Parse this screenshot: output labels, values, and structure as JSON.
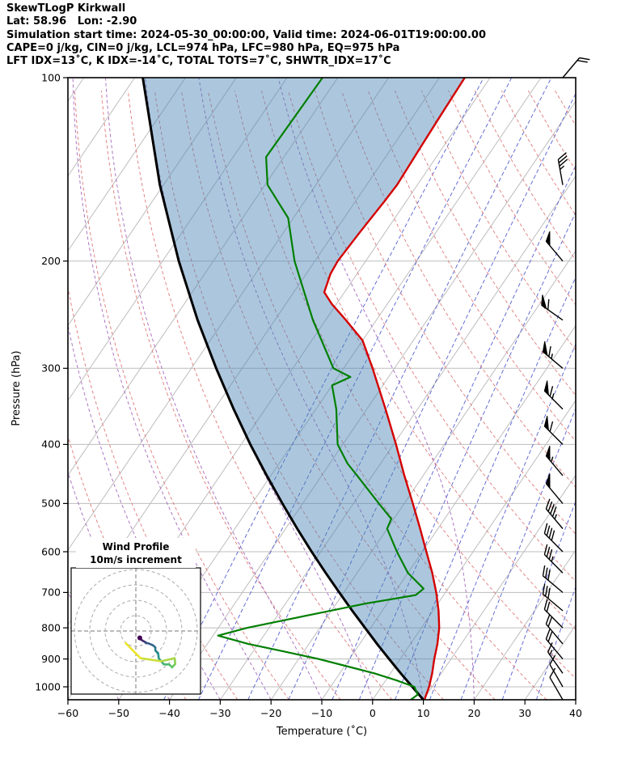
{
  "header": {
    "title": "SkewTLogP Kirkwall",
    "location": "Lat: 58.96   Lon: -2.90",
    "times": "Simulation start time: 2024-05-30_00:00:00, Valid time: 2024-06-01T19:00:00.00",
    "thermo_line": "CAPE=0 j/kg, CIN=0 j/kg, LCL=974 hPa, LFC=980 hPa, EQ=975 hPa",
    "index_line": "LFT IDX=13˚C, K IDX=-14˚C, TOTAL TOTS=7˚C, SHWTR_IDX=17˚C"
  },
  "axes": {
    "xlabel": "Temperature (˚C)",
    "ylabel": "Pressure (hPa)",
    "x_ticks": [
      -60,
      -50,
      -40,
      -30,
      -20,
      -10,
      0,
      10,
      20,
      30,
      40
    ],
    "y_ticks": [
      100,
      200,
      300,
      400,
      500,
      600,
      700,
      800,
      900,
      1000
    ]
  },
  "inset": {
    "title": "Wind Profile",
    "subtitle": "10m/s increment",
    "ring_increment_ms": 10
  },
  "chart_data": {
    "type": "line",
    "title": "SkewTLogP Kirkwall",
    "xlabel": "Temperature (˚C)",
    "ylabel": "Pressure (hPa)",
    "xlim": [
      -60,
      40
    ],
    "pressure_top_hpa": 100,
    "pressure_bottom_hpa": 1050,
    "grid": "log-pressure vertical, skewed isotherms",
    "temperature_profile_p_t": [
      [
        1050,
        10.2
      ],
      [
        1000,
        9.4
      ],
      [
        950,
        8.2
      ],
      [
        900,
        6.7
      ],
      [
        850,
        5.3
      ],
      [
        800,
        3.5
      ],
      [
        750,
        1.1
      ],
      [
        700,
        -1.8
      ],
      [
        650,
        -5.2
      ],
      [
        600,
        -9.2
      ],
      [
        550,
        -13.5
      ],
      [
        500,
        -18.3
      ],
      [
        450,
        -23.7
      ],
      [
        400,
        -29.5
      ],
      [
        350,
        -36.3
      ],
      [
        300,
        -44.3
      ],
      [
        270,
        -50.0
      ],
      [
        250,
        -56.0
      ],
      [
        235,
        -61.0
      ],
      [
        225,
        -64.0
      ],
      [
        210,
        -65.2
      ],
      [
        200,
        -65.5
      ],
      [
        180,
        -65.0
      ],
      [
        160,
        -64.3
      ],
      [
        150,
        -64.0
      ],
      [
        130,
        -64.4
      ],
      [
        115,
        -64.7
      ],
      [
        100,
        -65.0
      ]
    ],
    "dewpoint_profile_p_t": [
      [
        1050,
        7.5
      ],
      [
        1030,
        8.2
      ],
      [
        1000,
        6.5
      ],
      [
        975,
        2.0
      ],
      [
        950,
        -3.2
      ],
      [
        925,
        -9.6
      ],
      [
        900,
        -16.1
      ],
      [
        875,
        -23.8
      ],
      [
        850,
        -32.0
      ],
      [
        824,
        -39.0
      ],
      [
        800,
        -34.3
      ],
      [
        760,
        -23.1
      ],
      [
        730,
        -14.2
      ],
      [
        707,
        -5.5
      ],
      [
        690,
        -4.8
      ],
      [
        650,
        -10.0
      ],
      [
        600,
        -15.0
      ],
      [
        550,
        -20.0
      ],
      [
        530,
        -20.5
      ],
      [
        500,
        -25.0
      ],
      [
        450,
        -33.0
      ],
      [
        430,
        -36.5
      ],
      [
        400,
        -41.0
      ],
      [
        350,
        -46.0
      ],
      [
        320,
        -50.0
      ],
      [
        310,
        -47.5
      ],
      [
        300,
        -52.0
      ],
      [
        250,
        -62.5
      ],
      [
        200,
        -74.0
      ],
      [
        170,
        -81.0
      ],
      [
        150,
        -89.5
      ],
      [
        135,
        -93.5
      ],
      [
        100,
        -93.0
      ]
    ],
    "parcel_profile_p_t": [
      [
        1050,
        10.0
      ],
      [
        1000,
        6.1
      ],
      [
        950,
        2.0
      ],
      [
        900,
        -2.2
      ],
      [
        850,
        -6.6
      ],
      [
        800,
        -11.1
      ],
      [
        750,
        -15.9
      ],
      [
        700,
        -20.9
      ],
      [
        650,
        -26.2
      ],
      [
        600,
        -31.8
      ],
      [
        550,
        -37.7
      ],
      [
        500,
        -44.0
      ],
      [
        450,
        -50.8
      ],
      [
        400,
        -58.2
      ],
      [
        350,
        -66.2
      ],
      [
        300,
        -75.1
      ],
      [
        250,
        -85.2
      ],
      [
        200,
        -96.8
      ],
      [
        150,
        -110.7
      ],
      [
        100,
        -128.4
      ]
    ],
    "cin_shading": "area between parcel curve and temperature curve",
    "isotherms_c": {
      "start": -160,
      "end": 40,
      "step": 10
    },
    "dry_adiabats_theta_c": [
      -40,
      -30,
      -20,
      -10,
      0,
      10,
      20,
      30,
      40,
      50,
      60,
      70,
      80,
      90,
      100,
      110,
      120,
      130,
      140,
      150,
      160,
      170,
      180,
      190,
      200
    ],
    "moist_adiabats_tw_c": [
      -60,
      -50,
      -40,
      -30,
      -20,
      -10,
      0,
      10,
      20
    ],
    "mixing_ratios_g_kg": [
      0.1,
      0.2,
      0.5,
      1,
      2,
      3,
      5,
      8,
      12,
      20,
      30
    ],
    "winds": [
      {
        "p": 1050,
        "dir": 330,
        "kt": 10
      },
      {
        "p": 1000,
        "dir": 330,
        "kt": 12
      },
      {
        "p": 950,
        "dir": 325,
        "kt": 15
      },
      {
        "p": 900,
        "dir": 320,
        "kt": 18
      },
      {
        "p": 850,
        "dir": 320,
        "kt": 20
      },
      {
        "p": 800,
        "dir": 315,
        "kt": 22
      },
      {
        "p": 750,
        "dir": 310,
        "kt": 28
      },
      {
        "p": 700,
        "dir": 310,
        "kt": 32
      },
      {
        "p": 650,
        "dir": 315,
        "kt": 35
      },
      {
        "p": 600,
        "dir": 315,
        "kt": 40
      },
      {
        "p": 550,
        "dir": 320,
        "kt": 45
      },
      {
        "p": 500,
        "dir": 320,
        "kt": 50
      },
      {
        "p": 450,
        "dir": 320,
        "kt": 55
      },
      {
        "p": 400,
        "dir": 315,
        "kt": 60
      },
      {
        "p": 350,
        "dir": 315,
        "kt": 65
      },
      {
        "p": 300,
        "dir": 310,
        "kt": 65
      },
      {
        "p": 250,
        "dir": 305,
        "kt": 60
      },
      {
        "p": 200,
        "dir": 320,
        "kt": 50
      },
      {
        "p": 150,
        "dir": 350,
        "kt": 35
      },
      {
        "p": 100,
        "dir": 40,
        "kt": 20
      }
    ],
    "colors": {
      "temperature": "#d40000",
      "dewpoint": "#007f00",
      "parcel": "#000000",
      "cin_fill": "#4682b4",
      "isotherm": "#bdbdbd",
      "pressure_grid": "#bdbdbd",
      "dry_adiabat": "#e07a7a",
      "moist_adiabat": "#a569bd",
      "mixing_ratio": "#5560d0",
      "barb": "#000000",
      "inset_grid": "#909090"
    }
  }
}
